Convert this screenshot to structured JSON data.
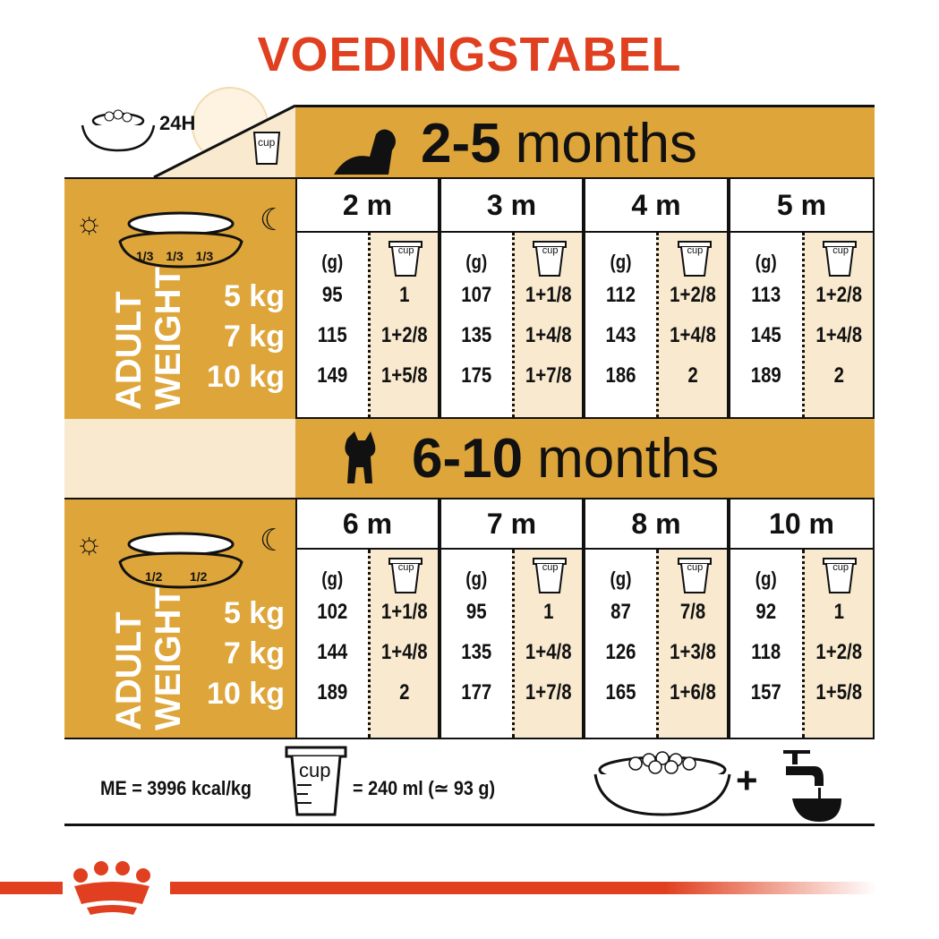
{
  "title": "VOEDINGSTABEL",
  "top_left": {
    "label_24h": "24H",
    "cup_label": "cup"
  },
  "weights": [
    "5 kg",
    "7 kg",
    "10 kg"
  ],
  "adult_weight": [
    "ADULT",
    "WEIGHT"
  ],
  "gram_header": "(g)",
  "cup_label": "cup",
  "sections": [
    {
      "title_num": "2-5",
      "title_unit": "months",
      "fractions": [
        "1/3",
        "1/3",
        "1/3"
      ],
      "months": [
        {
          "label": "2 m",
          "rows": [
            {
              "g": "95",
              "cup": "1"
            },
            {
              "g": "115",
              "cup": "1+2/8"
            },
            {
              "g": "149",
              "cup": "1+5/8"
            }
          ]
        },
        {
          "label": "3 m",
          "rows": [
            {
              "g": "107",
              "cup": "1+1/8"
            },
            {
              "g": "135",
              "cup": "1+4/8"
            },
            {
              "g": "175",
              "cup": "1+7/8"
            }
          ]
        },
        {
          "label": "4 m",
          "rows": [
            {
              "g": "112",
              "cup": "1+2/8"
            },
            {
              "g": "143",
              "cup": "1+4/8"
            },
            {
              "g": "186",
              "cup": "2"
            }
          ]
        },
        {
          "label": "5 m",
          "rows": [
            {
              "g": "113",
              "cup": "1+2/8"
            },
            {
              "g": "145",
              "cup": "1+4/8"
            },
            {
              "g": "189",
              "cup": "2"
            }
          ]
        }
      ]
    },
    {
      "title_num": "6-10",
      "title_unit": "months",
      "fractions": [
        "1/2",
        "1/2"
      ],
      "months": [
        {
          "label": "6 m",
          "rows": [
            {
              "g": "102",
              "cup": "1+1/8"
            },
            {
              "g": "144",
              "cup": "1+4/8"
            },
            {
              "g": "189",
              "cup": "2"
            }
          ]
        },
        {
          "label": "7 m",
          "rows": [
            {
              "g": "95",
              "cup": "1"
            },
            {
              "g": "135",
              "cup": "1+4/8"
            },
            {
              "g": "177",
              "cup": "1+7/8"
            }
          ]
        },
        {
          "label": "8 m",
          "rows": [
            {
              "g": "87",
              "cup": "7/8"
            },
            {
              "g": "126",
              "cup": "1+3/8"
            },
            {
              "g": "165",
              "cup": "1+6/8"
            }
          ]
        },
        {
          "label": "10 m",
          "rows": [
            {
              "g": "92",
              "cup": "1"
            },
            {
              "g": "118",
              "cup": "1+2/8"
            },
            {
              "g": "157",
              "cup": "1+5/8"
            }
          ]
        }
      ]
    }
  ],
  "footer": {
    "me": "ME = 3996 kcal/kg",
    "cup_label": "cup",
    "cup_eq": "= 240 ml (≃ 93 g)",
    "plus": "+"
  },
  "colors": {
    "brand_red": "#e0401f",
    "gold": "#dea53a",
    "cream": "#f8e9cf"
  }
}
